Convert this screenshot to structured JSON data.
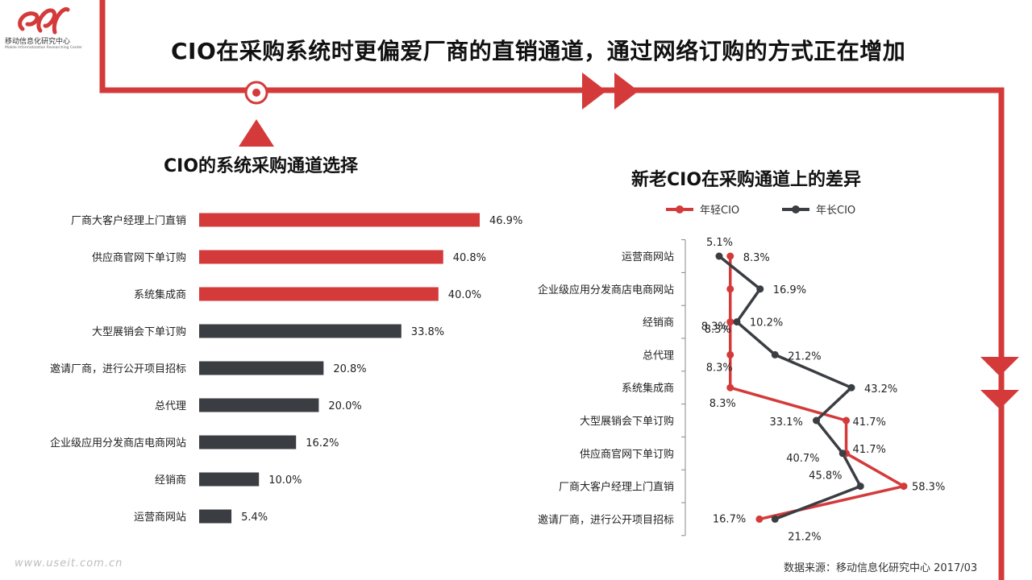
{
  "logo": {
    "mark": "el",
    "name_cn": "移动信息化研究中心",
    "name_en": "Mobile Informatization Researching Center"
  },
  "title": "CIO在采购系统时更偏爱厂商的直销通道，通过网络订购的方式正在增加",
  "colors": {
    "red": "#d43a3a",
    "dark": "#3a3d42"
  },
  "watermark": "www.useit.com.cn",
  "source": "数据来源：移动信息化研究中心 2017/03",
  "chart_data": [
    {
      "type": "bar",
      "orientation": "horizontal",
      "title": "CIO的系统采购通道选择",
      "categories": [
        "厂商大客户经理上门直销",
        "供应商官网下单订购",
        "系统集成商",
        "大型展销会下单订购",
        "邀请厂商，进行公开项目招标",
        "总代理",
        "企业级应用分发商店电商网站",
        "经销商",
        "运营商网站"
      ],
      "values": [
        46.9,
        40.8,
        40.0,
        33.8,
        20.8,
        20.0,
        16.2,
        10.0,
        5.4
      ],
      "value_labels": [
        "46.9%",
        "40.8%",
        "40.0%",
        "33.8%",
        "20.8%",
        "20.0%",
        "16.2%",
        "10.0%",
        "5.4%"
      ],
      "bar_colors": [
        "red",
        "red",
        "red",
        "dark",
        "dark",
        "dark",
        "dark",
        "dark",
        "dark"
      ],
      "xlim": [
        0,
        50
      ]
    },
    {
      "type": "line",
      "title": "新老CIO在采购通道上的差异",
      "categories": [
        "运营商网站",
        "企业级应用分发商店电商网站",
        "经销商",
        "总代理",
        "系统集成商",
        "大型展销会下单订购",
        "供应商官网下单订购",
        "厂商大客户经理上门直销",
        "邀请厂商，进行公开项目招标"
      ],
      "series": [
        {
          "name": "年轻CIO",
          "color": "red",
          "values": [
            8.3,
            8.3,
            8.3,
            8.3,
            8.3,
            41.7,
            41.7,
            58.3,
            16.7
          ],
          "labels": [
            "8.3%",
            "8.3%",
            "8.3%",
            "8.3%",
            "8.3%",
            "41.7%",
            "41.7%",
            "58.3%",
            "16.7%"
          ]
        },
        {
          "name": "年长CIO",
          "color": "dark",
          "values": [
            5.1,
            16.9,
            10.2,
            21.2,
            43.2,
            33.1,
            40.7,
            45.8,
            21.2
          ],
          "labels": [
            "5.1%",
            "16.9%",
            "10.2%",
            "21.2%",
            "43.2%",
            "33.1%",
            "40.7%",
            "45.8%",
            "21.2%"
          ]
        }
      ],
      "xlim": [
        0,
        60
      ],
      "legend": "top"
    }
  ]
}
